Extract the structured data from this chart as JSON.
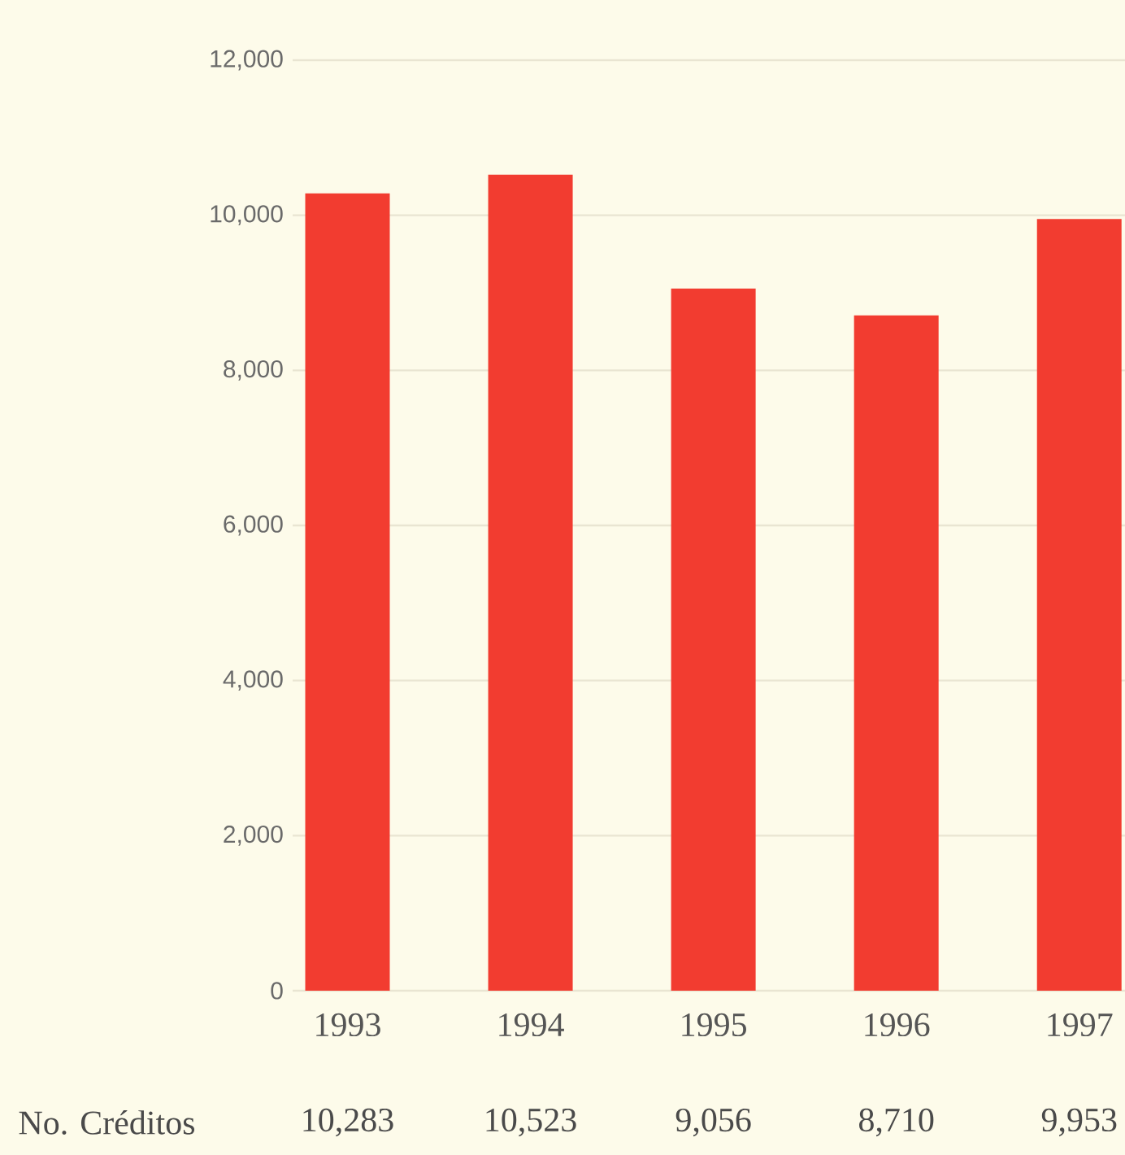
{
  "chart_data": {
    "type": "bar",
    "categories": [
      "1993",
      "1994",
      "1995",
      "1996",
      "1997"
    ],
    "values": [
      10283,
      10523,
      9056,
      8710,
      9953
    ],
    "color": "#f23c30",
    "ylim": [
      0,
      12000
    ],
    "yticks": [
      0,
      {
        "value": 2000,
        "label": "2,000"
      },
      {
        "value": 4000,
        "label": "4,000"
      },
      {
        "value": 6000,
        "label": "6,000"
      },
      {
        "value": 8000,
        "label": "8,000"
      },
      {
        "value": 10000,
        "label": "10,000"
      },
      {
        "value": 12000,
        "label": "12,000"
      }
    ],
    "grid": "y",
    "value_labels": [
      "10,283",
      "10,523",
      "9,056",
      "8,710",
      "9,953"
    ],
    "annotations": [
      "No. Créditos"
    ]
  }
}
